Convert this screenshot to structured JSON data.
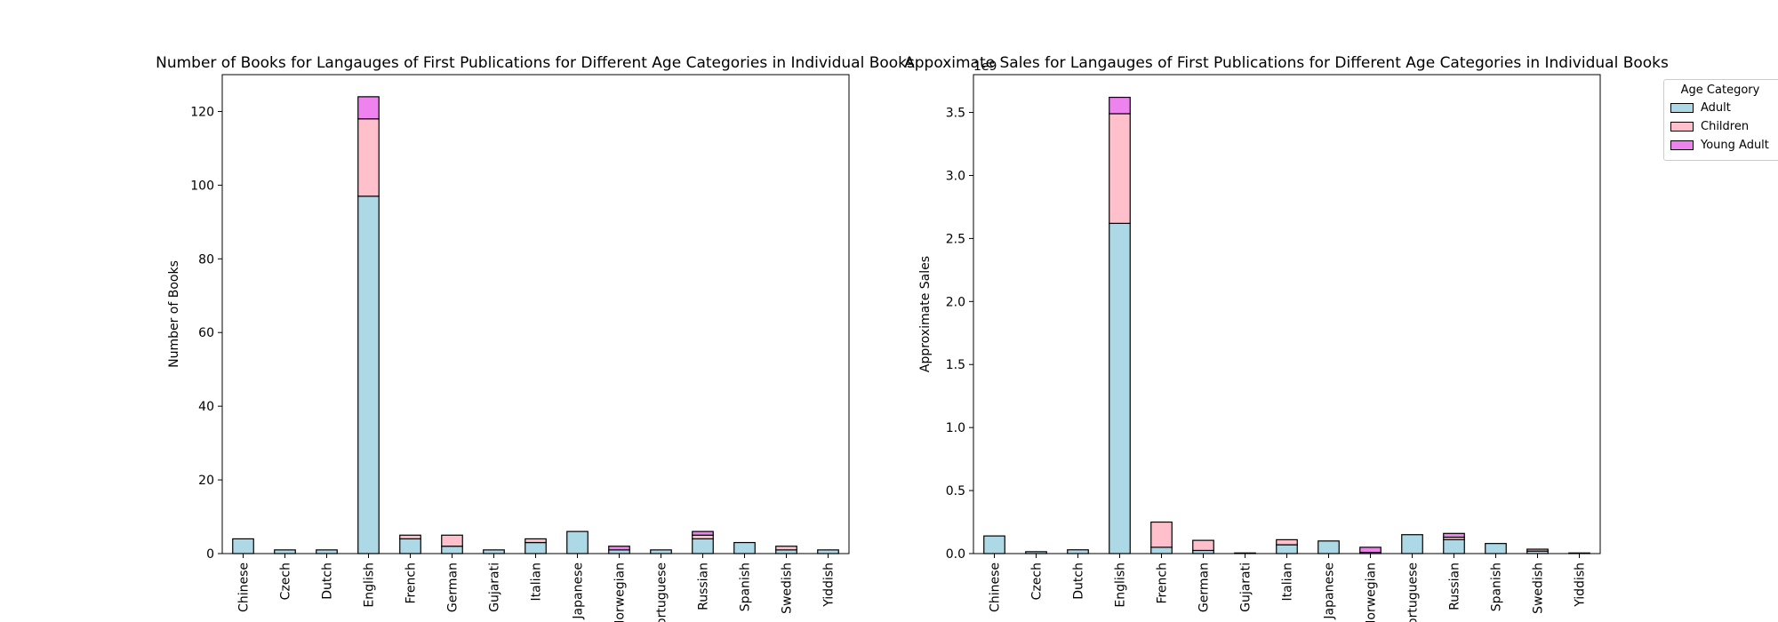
{
  "chart_data": [
    {
      "type": "bar",
      "stacked": true,
      "title": "Number of Books for Langauges of First Publications for Different Age Categories in Individual Books",
      "xlabel": "",
      "ylabel": "Number of Books",
      "ylim": [
        0,
        130
      ],
      "yticks": [
        0,
        20,
        40,
        60,
        80,
        100,
        120
      ],
      "ytick_labels": [
        "0",
        "20",
        "40",
        "60",
        "80",
        "100",
        "120"
      ],
      "offset_label": "",
      "categories": [
        "Chinese",
        "Czech",
        "Dutch",
        "English",
        "French",
        "German",
        "Gujarati",
        "Italian",
        "Japanese",
        "Norwegian",
        "Portuguese",
        "Russian",
        "Spanish",
        "Swedish",
        "Yiddish"
      ],
      "series": [
        {
          "name": "Adult",
          "color": "#add8e6",
          "values": [
            4,
            1,
            1,
            97,
            4,
            2,
            1,
            3,
            6,
            1,
            1,
            4,
            3,
            1,
            1
          ]
        },
        {
          "name": "Children",
          "color": "#ffc0cb",
          "values": [
            0,
            0,
            0,
            21,
            1,
            3,
            0,
            1,
            0,
            0,
            0,
            1,
            0,
            1,
            0
          ]
        },
        {
          "name": "Young Adult",
          "color": "#ee82ee",
          "values": [
            0,
            0,
            0,
            6,
            0,
            0,
            0,
            0,
            0,
            1,
            0,
            1,
            0,
            0,
            0
          ]
        }
      ],
      "grid": false
    },
    {
      "type": "bar",
      "stacked": true,
      "title": "Appoximate Sales for Langauges of First Publications for Different Age Categories in Individual Books",
      "xlabel": "",
      "ylabel": "Approximate Sales",
      "ylim": [
        0,
        3.8
      ],
      "yticks": [
        0,
        0.5,
        1.0,
        1.5,
        2.0,
        2.5,
        3.0,
        3.5
      ],
      "ytick_labels": [
        "0.0",
        "0.5",
        "1.0",
        "1.5",
        "2.0",
        "2.5",
        "3.0",
        "3.5"
      ],
      "offset_label": "1e9",
      "categories": [
        "Chinese",
        "Czech",
        "Dutch",
        "English",
        "French",
        "German",
        "Gujarati",
        "Italian",
        "Japanese",
        "Norwegian",
        "Portuguese",
        "Russian",
        "Spanish",
        "Swedish",
        "Yiddish"
      ],
      "series": [
        {
          "name": "Adult",
          "color": "#add8e6",
          "values": [
            0.14,
            0.015,
            0.03,
            2.62,
            0.05,
            0.025,
            0.005,
            0.07,
            0.1,
            0.01,
            0.15,
            0.11,
            0.08,
            0.02,
            0.005
          ]
        },
        {
          "name": "Children",
          "color": "#ffc0cb",
          "values": [
            0,
            0,
            0,
            0.87,
            0.2,
            0.08,
            0,
            0.04,
            0,
            0,
            0,
            0.02,
            0,
            0.015,
            0
          ]
        },
        {
          "name": "Young Adult",
          "color": "#ee82ee",
          "values": [
            0,
            0,
            0,
            0.13,
            0,
            0,
            0,
            0,
            0,
            0.04,
            0,
            0.03,
            0,
            0,
            0
          ]
        }
      ],
      "grid": false
    }
  ],
  "legend": {
    "title": "Age Category",
    "placement": "outside-right-top",
    "items": [
      {
        "label": "Adult",
        "color": "#add8e6"
      },
      {
        "label": "Children",
        "color": "#ffc0cb"
      },
      {
        "label": "Young Adult",
        "color": "#ee82ee"
      }
    ]
  }
}
